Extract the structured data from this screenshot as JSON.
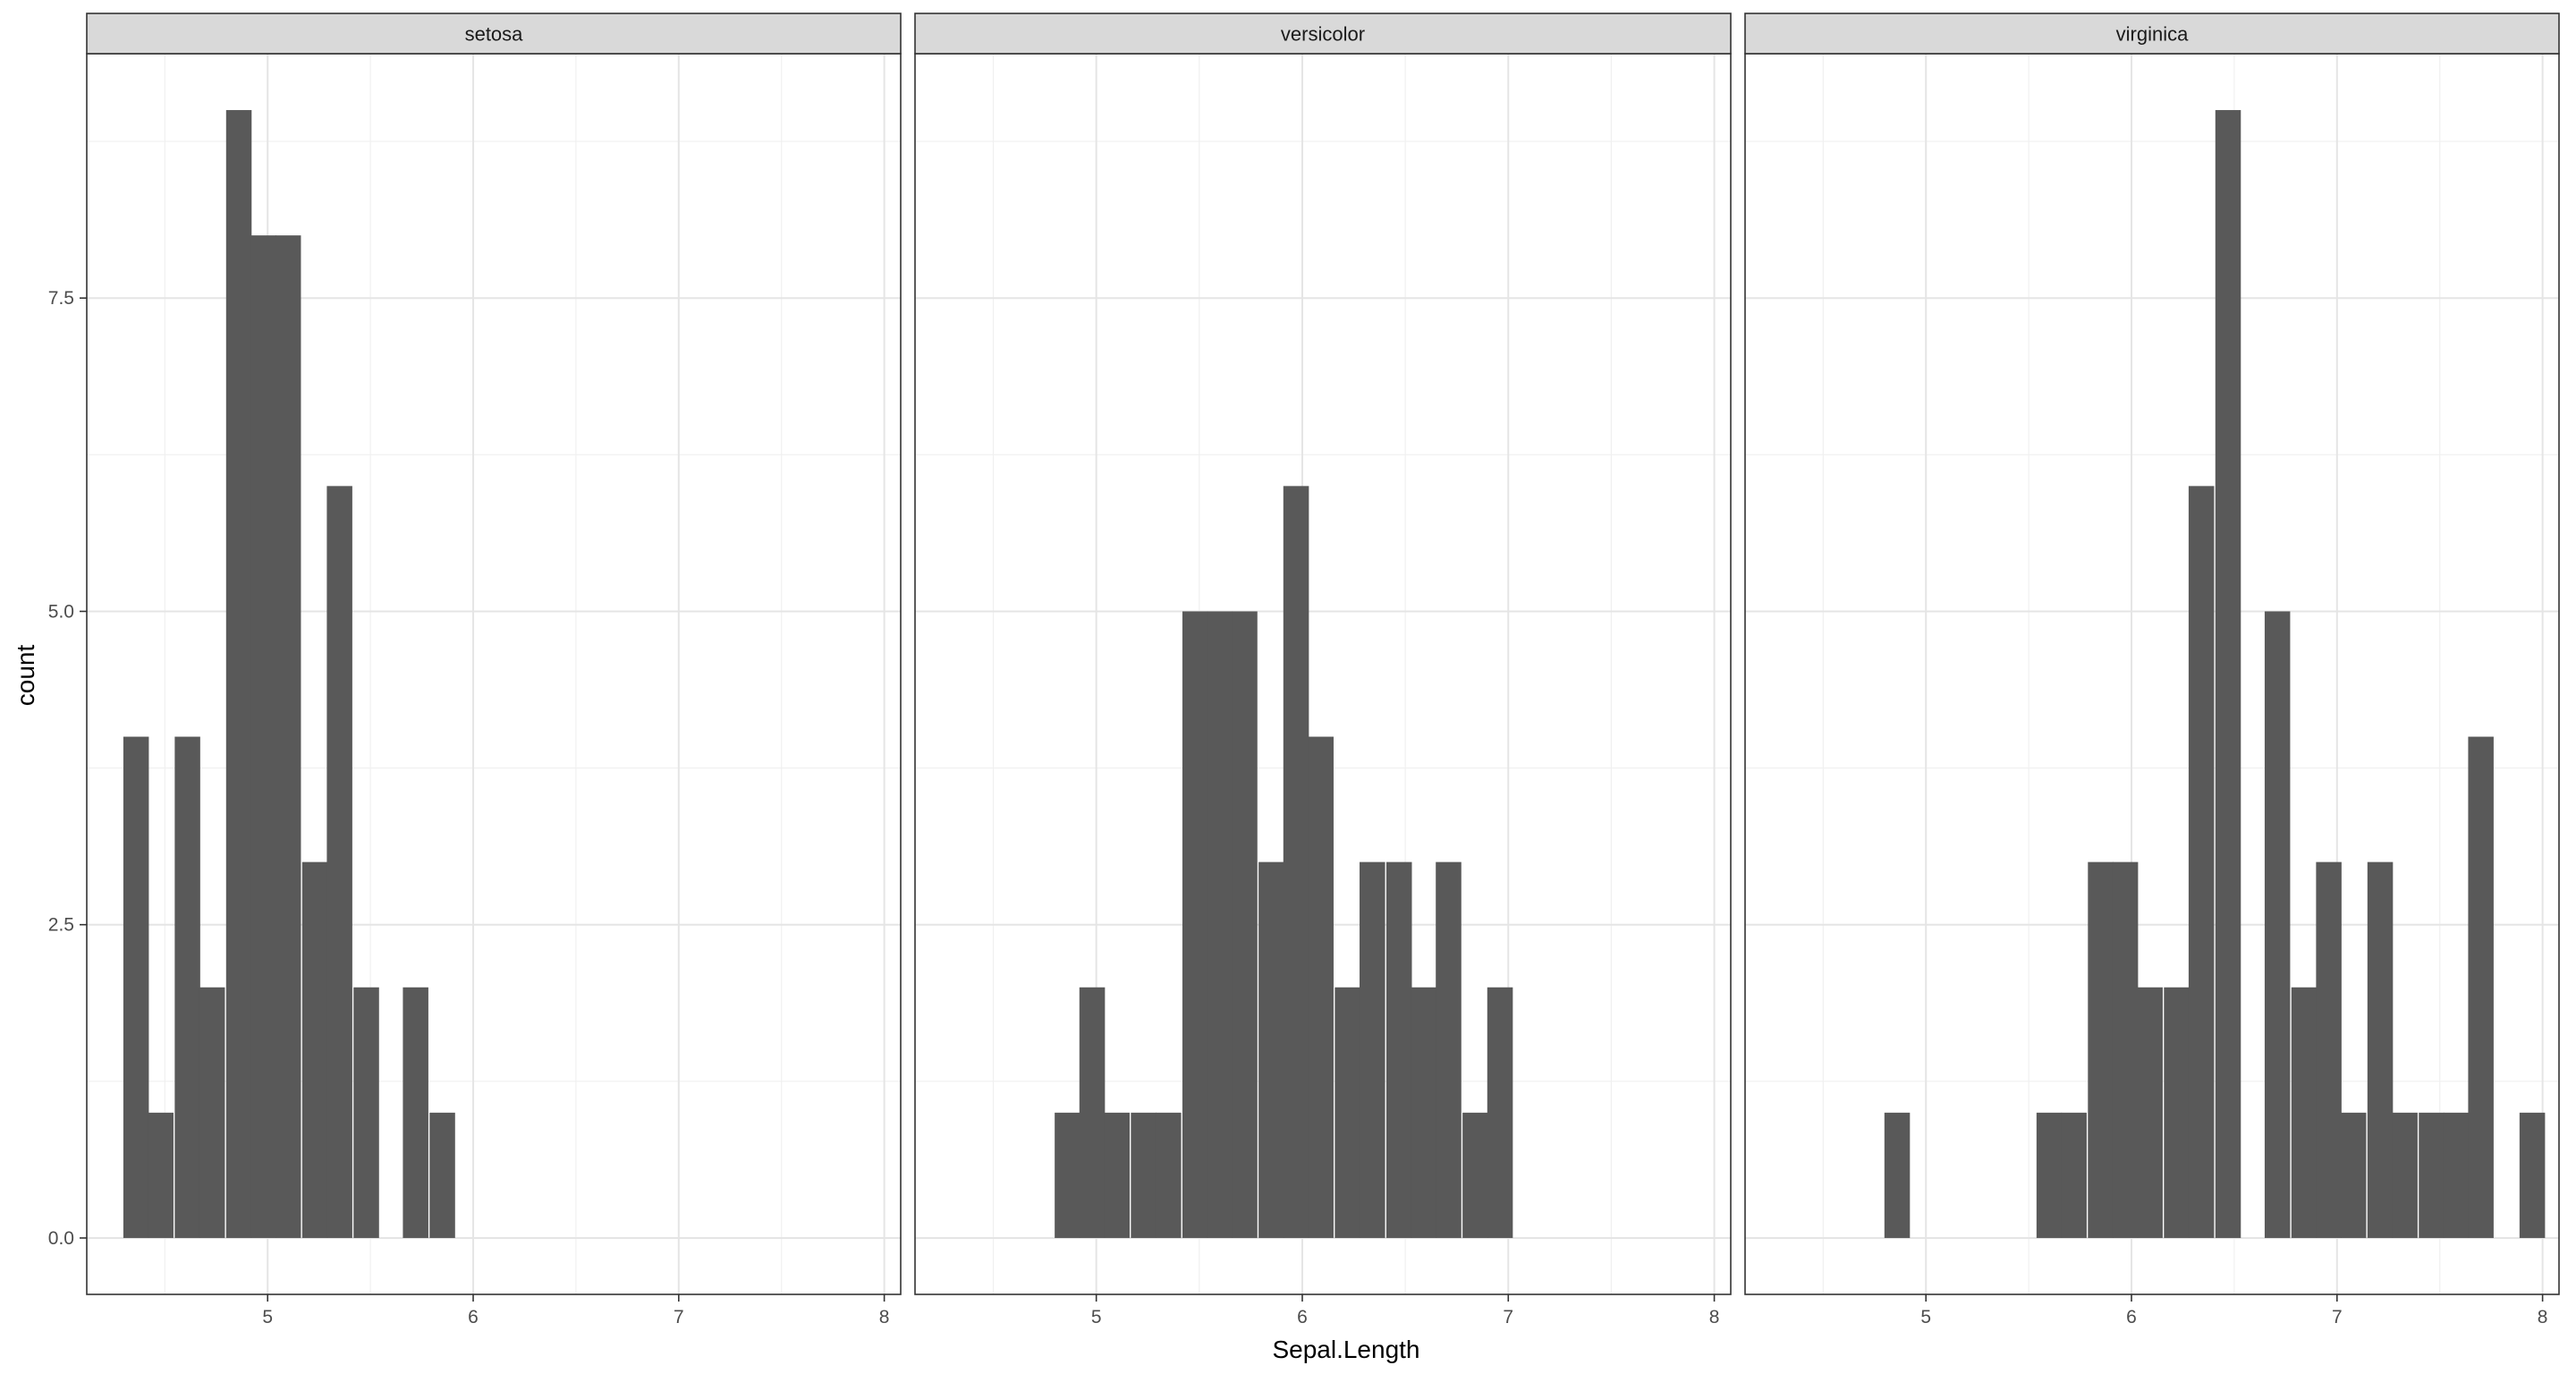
{
  "chart_data": {
    "type": "bar",
    "xlabel": "Sepal.Length",
    "ylabel": "count",
    "xlim": [
      4.12,
      8.08
    ],
    "ylim": [
      -0.45,
      9.45
    ],
    "x_ticks": [
      5,
      6,
      7,
      8
    ],
    "y_ticks": [
      0.0,
      2.5,
      5.0,
      7.5
    ],
    "x_tick_labels": [
      "5",
      "6",
      "7",
      "8"
    ],
    "y_tick_labels": [
      "0.0",
      "2.5",
      "5.0",
      "7.5"
    ],
    "bin_width": 0.124,
    "grid": true,
    "bar_color": "#595959",
    "strip_color": "#d9d9d9",
    "panels": [
      {
        "label": "setosa",
        "bins": [
          {
            "x": 4.36,
            "count": 4
          },
          {
            "x": 4.48,
            "count": 1
          },
          {
            "x": 4.61,
            "count": 4
          },
          {
            "x": 4.73,
            "count": 2
          },
          {
            "x": 4.86,
            "count": 9
          },
          {
            "x": 4.98,
            "count": 8
          },
          {
            "x": 5.1,
            "count": 8
          },
          {
            "x": 5.23,
            "count": 3
          },
          {
            "x": 5.35,
            "count": 6
          },
          {
            "x": 5.48,
            "count": 2
          },
          {
            "x": 5.72,
            "count": 2
          },
          {
            "x": 5.85,
            "count": 1
          }
        ]
      },
      {
        "label": "versicolor",
        "bins": [
          {
            "x": 4.86,
            "count": 1
          },
          {
            "x": 4.98,
            "count": 2
          },
          {
            "x": 5.1,
            "count": 1
          },
          {
            "x": 5.23,
            "count": 1
          },
          {
            "x": 5.35,
            "count": 1
          },
          {
            "x": 5.48,
            "count": 5
          },
          {
            "x": 5.6,
            "count": 5
          },
          {
            "x": 5.72,
            "count": 5
          },
          {
            "x": 5.85,
            "count": 3
          },
          {
            "x": 5.97,
            "count": 6
          },
          {
            "x": 6.09,
            "count": 4
          },
          {
            "x": 6.22,
            "count": 2
          },
          {
            "x": 6.34,
            "count": 3
          },
          {
            "x": 6.47,
            "count": 3
          },
          {
            "x": 6.59,
            "count": 2
          },
          {
            "x": 6.71,
            "count": 3
          },
          {
            "x": 6.84,
            "count": 1
          },
          {
            "x": 6.96,
            "count": 2
          }
        ]
      },
      {
        "label": "virginica",
        "bins": [
          {
            "x": 4.86,
            "count": 1
          },
          {
            "x": 5.6,
            "count": 1
          },
          {
            "x": 5.72,
            "count": 1
          },
          {
            "x": 5.85,
            "count": 3
          },
          {
            "x": 5.97,
            "count": 3
          },
          {
            "x": 6.09,
            "count": 2
          },
          {
            "x": 6.22,
            "count": 2
          },
          {
            "x": 6.34,
            "count": 6
          },
          {
            "x": 6.47,
            "count": 9
          },
          {
            "x": 6.71,
            "count": 5
          },
          {
            "x": 6.84,
            "count": 2
          },
          {
            "x": 6.96,
            "count": 3
          },
          {
            "x": 7.08,
            "count": 1
          },
          {
            "x": 7.21,
            "count": 3
          },
          {
            "x": 7.33,
            "count": 1
          },
          {
            "x": 7.46,
            "count": 1
          },
          {
            "x": 7.58,
            "count": 1
          },
          {
            "x": 7.7,
            "count": 4
          },
          {
            "x": 7.95,
            "count": 1
          }
        ]
      }
    ]
  }
}
